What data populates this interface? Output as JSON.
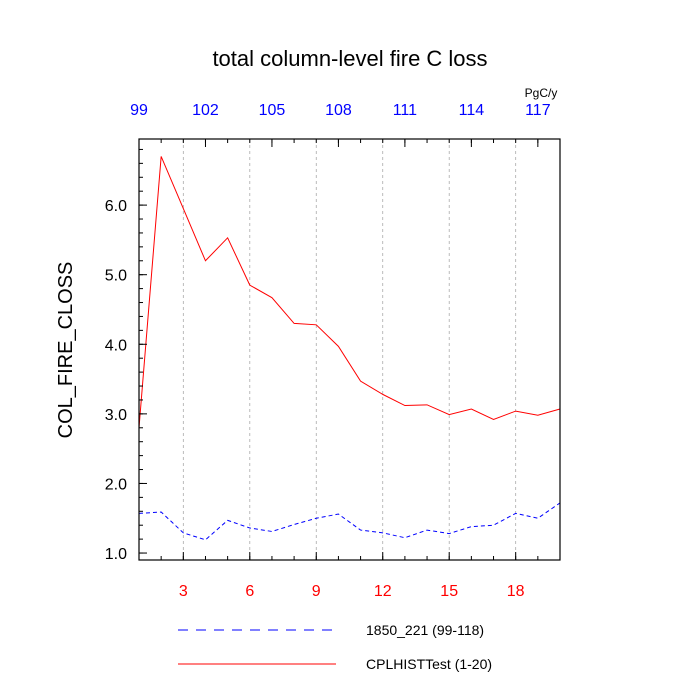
{
  "chart_data": {
    "type": "line",
    "title": "total column-level fire C loss",
    "ylabel": "COL_FIRE_CLOSS",
    "units": "PgC/y",
    "xlim": [
      1,
      20
    ],
    "ylim": [
      0.9,
      6.95
    ],
    "yticks": [
      "1.0",
      "2.0",
      "3.0",
      "4.0",
      "5.0",
      "6.0"
    ],
    "bottom_axis": {
      "ticks": [
        3,
        6,
        9,
        12,
        15,
        18
      ],
      "labels": [
        "3",
        "6",
        "9",
        "12",
        "15",
        "18"
      ],
      "color": "#ff0000"
    },
    "top_axis": {
      "ticks": [
        1,
        4,
        7,
        10,
        13,
        16,
        19
      ],
      "labels": [
        "99",
        "102",
        "105",
        "108",
        "111",
        "114",
        "117"
      ],
      "color": "#0000ff"
    },
    "x": [
      1,
      2,
      3,
      4,
      5,
      6,
      7,
      8,
      9,
      10,
      11,
      12,
      13,
      14,
      15,
      16,
      17,
      18,
      19,
      20
    ],
    "series": [
      {
        "name": "1850_221 (99-118)",
        "color": "#0000ff",
        "dash": "dashed",
        "values": [
          1.57,
          1.59,
          1.29,
          1.19,
          1.47,
          1.36,
          1.31,
          1.41,
          1.5,
          1.56,
          1.33,
          1.29,
          1.22,
          1.33,
          1.28,
          1.38,
          1.4,
          1.57,
          1.5,
          1.72
        ]
      },
      {
        "name": "CPLHISTTest (1-20)",
        "color": "#ff0000",
        "dash": "solid",
        "values": [
          2.8,
          6.7,
          5.95,
          5.2,
          5.53,
          4.85,
          4.67,
          4.3,
          4.28,
          3.97,
          3.47,
          3.28,
          3.12,
          3.13,
          2.99,
          3.07,
          2.92,
          3.04,
          2.98,
          3.07
        ]
      }
    ]
  }
}
